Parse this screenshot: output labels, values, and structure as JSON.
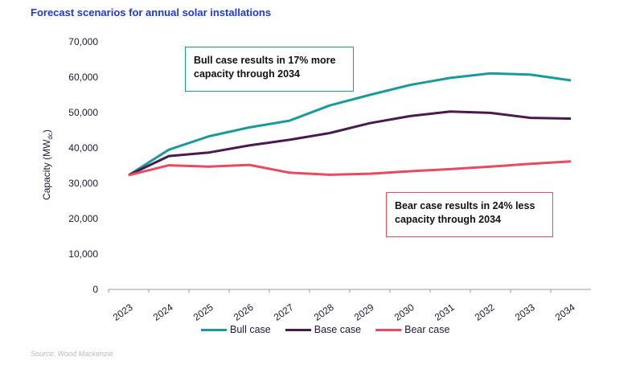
{
  "title": "Forecast scenarios for annual solar installations",
  "source": "Source: Wood Mackenzie",
  "callouts": {
    "bull": "Bull case results in 17% more capacity through 2034",
    "bear": "Bear case results in 24% less capacity through 2034"
  },
  "chart_data": {
    "type": "line",
    "ylabel": "Capacity (MW",
    "ylabel_sub": "dc",
    "ylabel_end": ")",
    "ylim": [
      0,
      70000
    ],
    "yticks": [
      "0",
      "10,000",
      "20,000",
      "30,000",
      "40,000",
      "50,000",
      "60,000",
      "70,000"
    ],
    "categories": [
      "2023",
      "2024",
      "2025",
      "2026",
      "2027",
      "2028",
      "2029",
      "2030",
      "2031",
      "2032",
      "2033",
      "2034"
    ],
    "series": [
      {
        "name": "Bull case",
        "color": "#1a9a9a",
        "values": [
          32300,
          39500,
          43300,
          45800,
          47700,
          52000,
          55000,
          57800,
          59800,
          61100,
          60700,
          59100
        ]
      },
      {
        "name": "Base case",
        "color": "#4a1a4f",
        "values": [
          32300,
          37700,
          38700,
          40700,
          42300,
          44200,
          47000,
          49000,
          50300,
          49900,
          48500,
          48300
        ]
      },
      {
        "name": "Bear case",
        "color": "#e84a5f",
        "values": [
          32300,
          35100,
          34700,
          35200,
          33000,
          32400,
          32700,
          33400,
          34000,
          34700,
          35500,
          36200
        ]
      }
    ],
    "legend_position": "bottom"
  }
}
